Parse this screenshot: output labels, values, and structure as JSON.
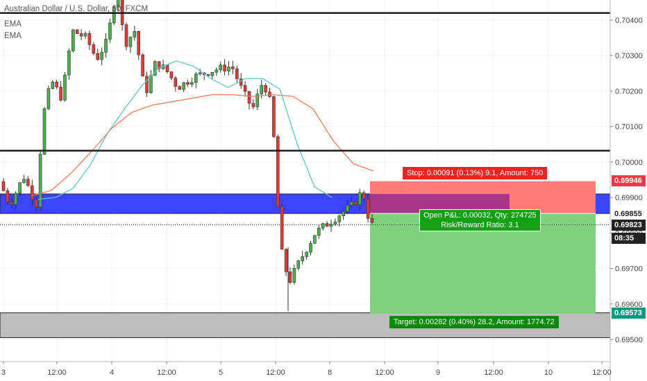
{
  "header": {
    "symbol": "Australian Dollar / U.S. Dollar, 60, FXCM",
    "indicator1": "EMA",
    "indicator2": "EMA"
  },
  "chart_data": {
    "type": "candlestick",
    "symbol": "AUDUSD",
    "timeframe": "60",
    "ylim": [
      0.6945,
      0.7053
    ],
    "y_ticks": [
      "0.70400",
      "0.70300",
      "0.70200",
      "0.70100",
      "0.70000",
      "0.69900",
      "0.69800",
      "0.69700",
      "0.69600",
      "0.69500"
    ],
    "x_ticks": [
      "3",
      "12:00",
      "4",
      "12:00",
      "5",
      "12:00",
      "8",
      "12:00",
      "9",
      "12:00",
      "10",
      "12:00"
    ],
    "horizontal_lines": [
      0.7042,
      0.70032,
      0.6951
    ],
    "zones": [
      {
        "name": "blue-zone",
        "from": 0.69855,
        "to": 0.6991,
        "color": "#3d44ff"
      },
      {
        "name": "gray-zone",
        "from": 0.69505,
        "to": 0.69575,
        "color": "#bdbdbd"
      }
    ],
    "emas": [
      {
        "name": "EMA fast",
        "color": "#5ec6c6",
        "values": [
          0.69895,
          0.699,
          0.69925,
          0.6999,
          0.7008,
          0.7015,
          0.70215,
          0.70265,
          0.70285,
          0.7027,
          0.70235,
          0.7021,
          0.70235,
          0.70235,
          0.70205,
          0.7005,
          0.6993,
          0.699
        ]
      },
      {
        "name": "EMA slow",
        "color": "#ef7d56",
        "values": [
          0.69905,
          0.6992,
          0.6997,
          0.7003,
          0.70095,
          0.7014,
          0.7016,
          0.7017,
          0.7018,
          0.7019,
          0.7019,
          0.70185,
          0.7019,
          0.70185,
          0.7015,
          0.7006,
          0.69995,
          0.69975
        ]
      }
    ],
    "position": {
      "entry": 0.69855,
      "stop": 0.69946,
      "target": 0.69573
    },
    "price_tags": [
      {
        "price": "0.69946",
        "color": "#f23645"
      },
      {
        "price": "0.69855",
        "color": "plain"
      },
      {
        "price": "0.69823",
        "color": "#222222"
      },
      {
        "price": "0.69573",
        "color": "#089981"
      }
    ],
    "countdown": "08:35",
    "current_price": 0.69823
  },
  "position_labels": {
    "stop": "Stop: 0.00091 (0.13%) 9.1, Amount: 750",
    "open_pl": "Open P&L: 0.00032, Qty: 274725",
    "risk_reward": "Risk/Reward Ratio: 3.1",
    "target": "Target: 0.00282 (0.40%) 28.2, Amount: 1774.72"
  },
  "colors": {
    "up": "#26a69a",
    "down": "#ef5350",
    "upBody": "#4caf50",
    "downBody": "#e53935",
    "stopZone": "#ff7b7b",
    "targetZone": "#7fd07f",
    "stopLabel": "#f02222",
    "targetLabel": "#0a8a0a",
    "openLabel": "#13a013"
  }
}
